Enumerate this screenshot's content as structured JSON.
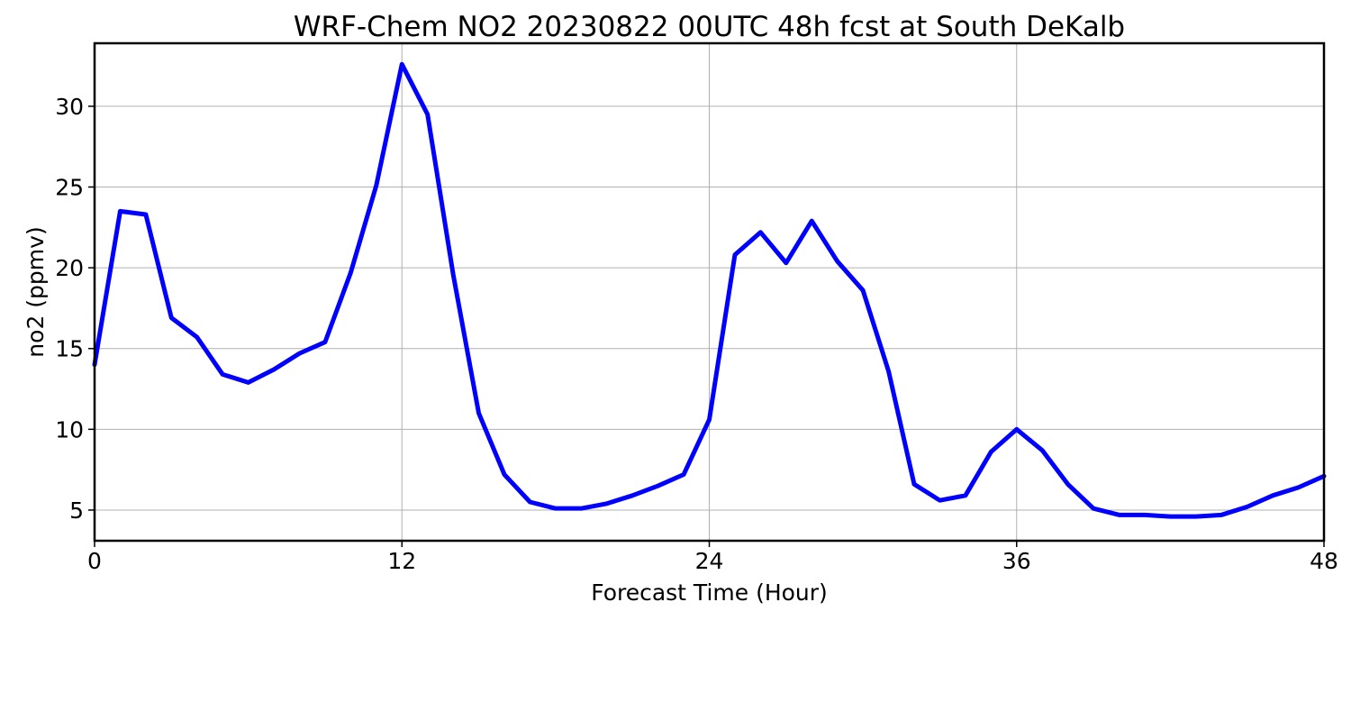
{
  "chart_data": {
    "type": "line",
    "title": "WRF-Chem NO2  20230822 00UTC 48h fcst at South DeKalb",
    "xlabel": "Forecast Time (Hour)",
    "ylabel": "no2  (ppmv)",
    "xlim": [
      0,
      48
    ],
    "ylim": [
      3.1,
      33.9
    ],
    "xticks": [
      0,
      12,
      24,
      36,
      48
    ],
    "yticks": [
      5,
      10,
      15,
      20,
      25,
      30
    ],
    "grid": true,
    "line_color": "#0000ff",
    "x": [
      0,
      1,
      2,
      3,
      4,
      5,
      6,
      7,
      8,
      9,
      10,
      11,
      12,
      13,
      14,
      15,
      16,
      17,
      18,
      19,
      20,
      21,
      22,
      23,
      24,
      25,
      26,
      27,
      28,
      29,
      30,
      31,
      32,
      33,
      34,
      35,
      36,
      37,
      38,
      39,
      40,
      41,
      42,
      43,
      44,
      45,
      46,
      47,
      48
    ],
    "series": [
      {
        "values": [
          14.0,
          23.5,
          23.3,
          16.9,
          15.7,
          13.4,
          12.9,
          13.7,
          14.7,
          15.4,
          19.7,
          25.1,
          32.6,
          29.5,
          19.6,
          11.0,
          7.2,
          5.5,
          5.1,
          5.1,
          5.4,
          5.9,
          6.5,
          7.2,
          10.6,
          20.8,
          22.2,
          20.3,
          22.9,
          20.4,
          18.6,
          13.6,
          6.6,
          5.6,
          5.9,
          8.6,
          10.0,
          8.7,
          6.6,
          5.1,
          4.7,
          4.7,
          4.6,
          4.6,
          4.7,
          5.2,
          5.9,
          6.4,
          7.1
        ]
      }
    ]
  }
}
